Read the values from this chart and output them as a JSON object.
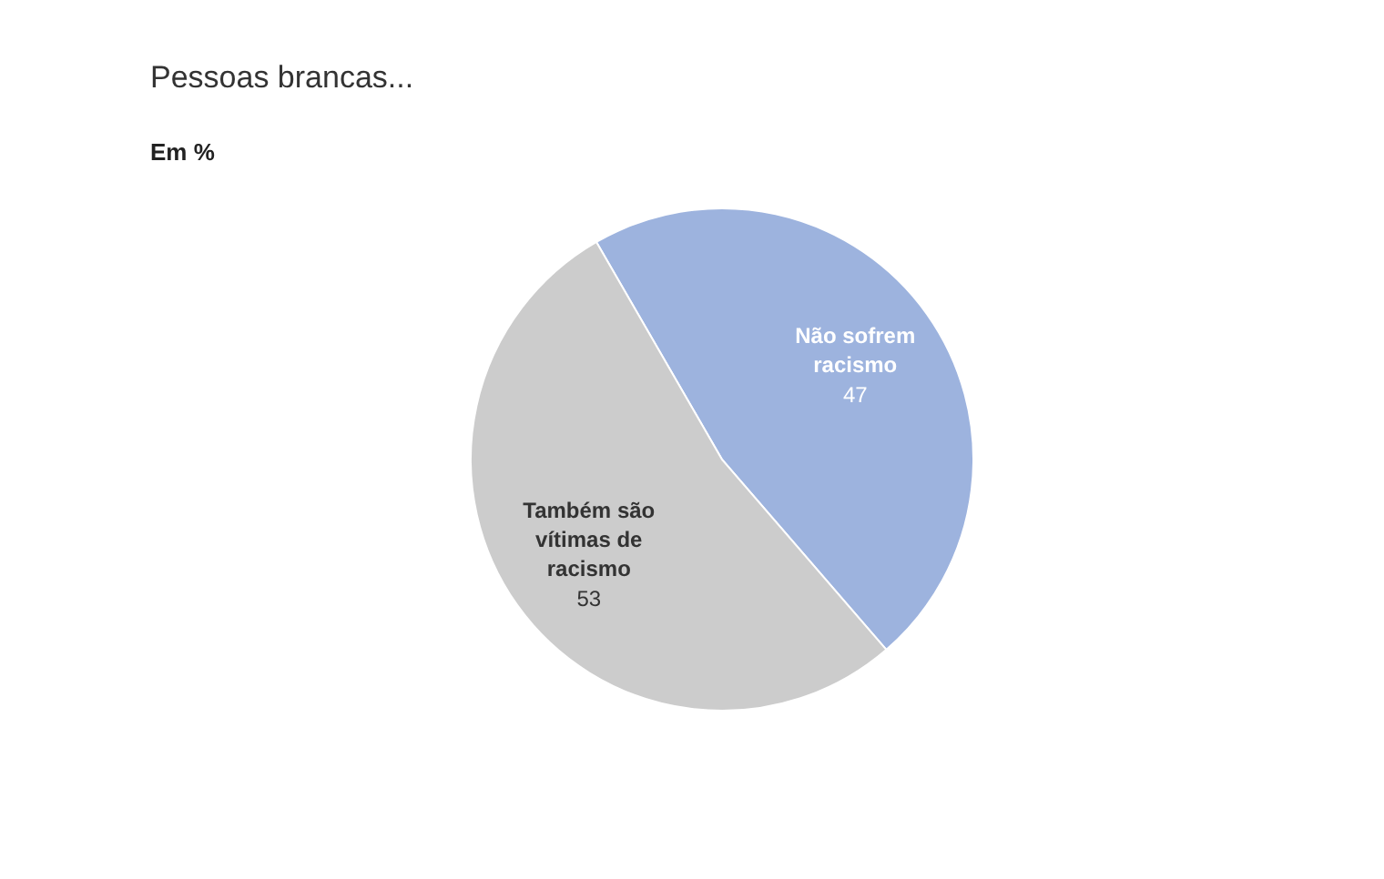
{
  "chart_data": {
    "type": "pie",
    "title": "Pessoas brancas...",
    "subtitle": "Em %",
    "categories": [
      "Não sofrem racismo",
      "Também são vítimas de racismo"
    ],
    "values": [
      47,
      53
    ],
    "colors": [
      "#9db3de",
      "#cccccc"
    ],
    "data_labels": true
  }
}
